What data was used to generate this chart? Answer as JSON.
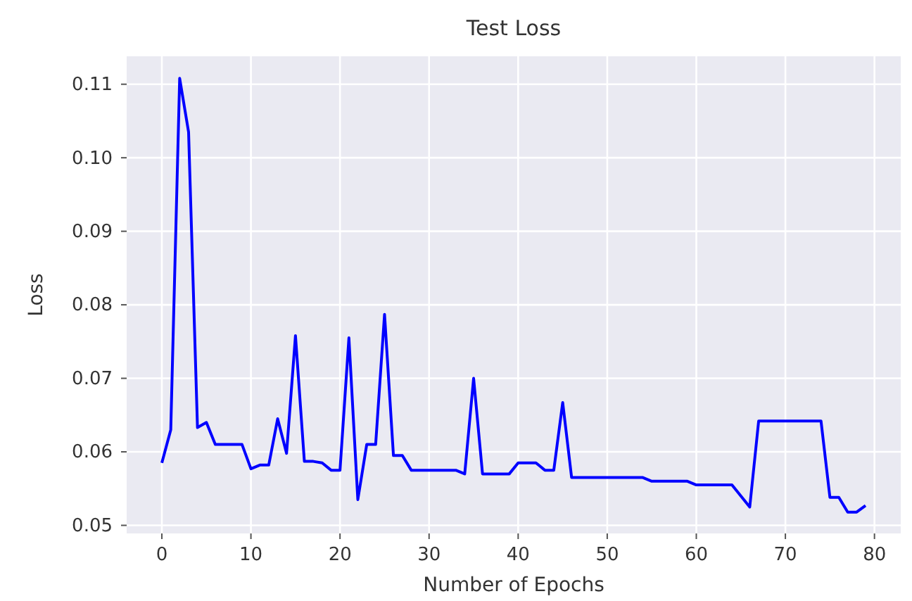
{
  "chart_data": {
    "type": "line",
    "title": "Test Loss",
    "xlabel": "Number of Epochs",
    "ylabel": "Loss",
    "x": [
      0,
      1,
      2,
      3,
      4,
      5,
      6,
      7,
      8,
      9,
      10,
      11,
      12,
      13,
      14,
      15,
      16,
      17,
      18,
      19,
      20,
      21,
      22,
      23,
      24,
      25,
      26,
      27,
      28,
      29,
      30,
      31,
      32,
      33,
      34,
      35,
      36,
      37,
      38,
      39,
      40,
      41,
      42,
      43,
      44,
      45,
      46,
      47,
      48,
      49,
      50,
      51,
      52,
      53,
      54,
      55,
      56,
      57,
      58,
      59,
      60,
      61,
      62,
      63,
      64,
      65,
      66,
      67,
      68,
      69,
      70,
      71,
      72,
      73,
      74,
      75,
      76,
      77,
      78,
      79
    ],
    "series": [
      {
        "color": "#0000ff",
        "values": [
          0.0585,
          0.063,
          0.1108,
          0.1035,
          0.0633,
          0.064,
          0.061,
          0.061,
          0.061,
          0.061,
          0.0577,
          0.0582,
          0.0582,
          0.0645,
          0.0598,
          0.0758,
          0.0587,
          0.0587,
          0.0585,
          0.0575,
          0.0575,
          0.0755,
          0.0535,
          0.061,
          0.061,
          0.0787,
          0.0595,
          0.0595,
          0.0575,
          0.0575,
          0.0575,
          0.0575,
          0.0575,
          0.0575,
          0.057,
          0.07,
          0.057,
          0.057,
          0.057,
          0.057,
          0.0585,
          0.0585,
          0.0585,
          0.0575,
          0.0575,
          0.0667,
          0.0565,
          0.0565,
          0.0565,
          0.0565,
          0.0565,
          0.0565,
          0.0565,
          0.0565,
          0.0565,
          0.056,
          0.056,
          0.056,
          0.056,
          0.056,
          0.0555,
          0.0555,
          0.0555,
          0.0555,
          0.0555,
          0.054,
          0.0525,
          0.0642,
          0.0642,
          0.0642,
          0.0642,
          0.0642,
          0.0642,
          0.0642,
          0.0642,
          0.0538,
          0.0538,
          0.0518,
          0.0518,
          0.0527
        ]
      }
    ],
    "xlim": [
      -3.95,
      82.95
    ],
    "ylim": [
      0.0489,
      0.1138
    ],
    "xticks": [
      0,
      10,
      20,
      30,
      40,
      50,
      60,
      70,
      80
    ],
    "yticks": [
      {
        "value": 0.05,
        "label": "0.05"
      },
      {
        "value": 0.06,
        "label": "0.06"
      },
      {
        "value": 0.07,
        "label": "0.07"
      },
      {
        "value": 0.08,
        "label": "0.08"
      },
      {
        "value": 0.09,
        "label": "0.09"
      },
      {
        "value": 0.1,
        "label": "0.10"
      },
      {
        "value": 0.11,
        "label": "0.11"
      }
    ],
    "grid": true,
    "marker": "none",
    "line_style": "solid"
  }
}
